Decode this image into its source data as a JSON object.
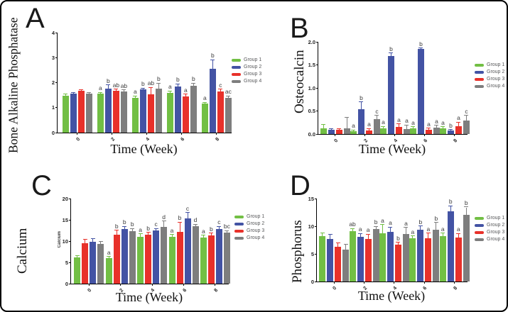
{
  "colors": {
    "group1": "#72bf44",
    "group2": "#4353a4",
    "group3": "#e8312a",
    "group4": "#7e7e7e"
  },
  "legend": {
    "items": [
      {
        "label": "Group 1",
        "color": "#72bf44"
      },
      {
        "label": "Group 2",
        "color": "#4353a4"
      },
      {
        "label": "Group 3",
        "color": "#e8312a"
      },
      {
        "label": "Group 4",
        "color": "#7e7e7e"
      }
    ]
  },
  "chart_data": [
    {
      "type": "bar",
      "panel_letter": "A",
      "ylabel": "Bone Alkaline Phosphatase",
      "inner_ylabel": "",
      "xlabel": "Time (Week)",
      "categories": [
        "0",
        "2",
        "4",
        "6",
        "8"
      ],
      "ylim": [
        0,
        4
      ],
      "yticks": [
        "0",
        "1",
        "2",
        "3",
        "4"
      ],
      "bar_order": [
        0,
        1,
        2,
        3
      ],
      "grid": false,
      "legend_position": "right",
      "series": [
        {
          "name": "Group 1",
          "color": "#72bf44",
          "values": [
            1.47,
            1.55,
            1.4,
            1.6,
            1.15
          ],
          "errors": [
            0.05,
            0.05,
            0.05,
            0.06,
            0.05
          ],
          "letters": [
            "",
            "a",
            "a",
            "a",
            "a"
          ]
        },
        {
          "name": "Group 2",
          "color": "#4353a4",
          "values": [
            1.56,
            1.75,
            1.72,
            1.85,
            2.55
          ],
          "errors": [
            0.03,
            0.15,
            0.04,
            0.08,
            0.35
          ],
          "letters": [
            "",
            "b",
            "b",
            "b",
            "b"
          ]
        },
        {
          "name": "Group 3",
          "color": "#e8312a",
          "values": [
            1.67,
            1.68,
            1.52,
            1.45,
            1.65
          ],
          "errors": [
            0.04,
            0.04,
            0.28,
            0.08,
            0.08
          ],
          "letters": [
            "",
            "ab",
            "ab",
            "a",
            "c"
          ]
        },
        {
          "name": "Group 4",
          "color": "#7e7e7e",
          "values": [
            1.55,
            1.65,
            1.75,
            1.88,
            1.38
          ],
          "errors": [
            0.04,
            0.04,
            0.22,
            0.08,
            0.08
          ],
          "letters": [
            "",
            "ab",
            "b",
            "b",
            "ac"
          ]
        }
      ]
    },
    {
      "type": "bar",
      "panel_letter": "B",
      "ylabel": "Osteocalcin",
      "inner_ylabel": "",
      "xlabel": "Time (Week)",
      "categories": [
        "0",
        "2",
        "4",
        "6",
        "8"
      ],
      "ylim": [
        0,
        2
      ],
      "yticks": [
        "0.0",
        "0.5",
        "1.0",
        "1.5",
        "2.0"
      ],
      "bar_order": [
        0,
        1,
        2,
        3
      ],
      "grid": false,
      "legend_position": "right",
      "series": [
        {
          "name": "Group 1",
          "color": "#72bf44",
          "values": [
            0.12,
            0.06,
            0.13,
            0.12,
            0.12
          ],
          "errors": [
            0.08,
            0.02,
            0.03,
            0.03,
            0.03
          ],
          "letters": [
            "",
            "a",
            "a",
            "a",
            "a"
          ]
        },
        {
          "name": "Group 2",
          "color": "#4353a4",
          "values": [
            0.09,
            0.54,
            1.7,
            1.84,
            0.07
          ],
          "errors": [
            0.02,
            0.15,
            0.05,
            0.02,
            0.02
          ],
          "letters": [
            "",
            "b",
            "b",
            "b",
            "b"
          ]
        },
        {
          "name": "Group 3",
          "color": "#e8312a",
          "values": [
            0.09,
            0.08,
            0.16,
            0.09,
            0.17
          ],
          "errors": [
            0.02,
            0.03,
            0.05,
            0.03,
            0.08
          ],
          "letters": [
            "",
            "a",
            "a",
            "a",
            "a"
          ]
        },
        {
          "name": "Group 4",
          "color": "#7e7e7e",
          "values": [
            0.13,
            0.33,
            0.11,
            0.14,
            0.3
          ],
          "errors": [
            0.22,
            0.07,
            0.08,
            0.04,
            0.1
          ],
          "letters": [
            "",
            "c",
            "a",
            "a",
            "c"
          ]
        }
      ]
    },
    {
      "type": "bar",
      "panel_letter": "C",
      "ylabel": "Calcium",
      "inner_ylabel": "Calcium",
      "xlabel": "Time (Week)",
      "categories": [
        "0",
        "2",
        "4",
        "6",
        "8"
      ],
      "ylim": [
        0,
        20
      ],
      "yticks": [
        "0",
        "5",
        "10",
        "15",
        "20"
      ],
      "bar_order": [
        0,
        2,
        1,
        3
      ],
      "grid": false,
      "legend_position": "right",
      "series": [
        {
          "name": "Group 1",
          "color": "#72bf44",
          "values": [
            6.2,
            6.0,
            11.0,
            11.0,
            10.8
          ],
          "errors": [
            0.3,
            0.3,
            0.6,
            0.5,
            0.5
          ],
          "letters": [
            "",
            "a",
            "a",
            "a",
            "a"
          ]
        },
        {
          "name": "Group 2",
          "color": "#4353a4",
          "values": [
            9.8,
            12.8,
            12.5,
            15.4,
            12.8
          ],
          "errors": [
            0.7,
            0.6,
            0.4,
            1.2,
            0.6
          ],
          "letters": [
            "",
            "b",
            "c",
            "c",
            "c"
          ]
        },
        {
          "name": "Group 3",
          "color": "#e8312a",
          "values": [
            9.5,
            11.5,
            11.5,
            12.2,
            11.4
          ],
          "errors": [
            0.8,
            1.0,
            0.5,
            2.2,
            0.4
          ],
          "letters": [
            "",
            "b",
            "b",
            "b",
            "b"
          ]
        },
        {
          "name": "Group 4",
          "color": "#7e7e7e",
          "values": [
            9.4,
            12.4,
            13.4,
            13.5,
            12.0
          ],
          "errors": [
            0.5,
            0.5,
            1.2,
            0.4,
            0.4
          ],
          "letters": [
            "",
            "b",
            "d",
            "d",
            "bc"
          ]
        }
      ]
    },
    {
      "type": "bar",
      "panel_letter": "D",
      "ylabel": "Phosphorus",
      "inner_ylabel": "",
      "xlabel": "Time (Week)",
      "categories": [
        "0",
        "2",
        "4",
        "6",
        "8"
      ],
      "ylim": [
        0,
        15
      ],
      "yticks": [
        "0",
        "5",
        "10",
        "15"
      ],
      "bar_order": [
        0,
        1,
        2,
        3
      ],
      "grid": false,
      "legend_position": "right",
      "series": [
        {
          "name": "Group 1",
          "color": "#72bf44",
          "values": [
            8.2,
            9.1,
            8.7,
            7.8,
            8.2
          ],
          "errors": [
            0.5,
            0.4,
            1.5,
            0.4,
            0.5
          ],
          "letters": [
            "",
            "ab",
            "a",
            "a",
            "a"
          ]
        },
        {
          "name": "Group 2",
          "color": "#4353a4",
          "values": [
            7.7,
            8.1,
            9.0,
            9.4,
            12.7
          ],
          "errors": [
            0.8,
            0.5,
            0.8,
            0.6,
            0.9
          ],
          "letters": [
            "",
            "a",
            "a",
            "b",
            "b"
          ]
        },
        {
          "name": "Group 3",
          "color": "#e8312a",
          "values": [
            6.3,
            7.7,
            6.7,
            7.8,
            8.0
          ],
          "errors": [
            0.6,
            0.8,
            0.3,
            0.9,
            0.6
          ],
          "letters": [
            "",
            "a",
            "b",
            "a",
            "a"
          ]
        },
        {
          "name": "Group 4",
          "color": "#7e7e7e",
          "values": [
            5.8,
            9.5,
            8.6,
            9.3,
            12.0
          ],
          "errors": [
            0.9,
            0.4,
            1.1,
            1.3,
            1.4
          ],
          "letters": [
            "",
            "b",
            "a",
            "b",
            "b"
          ]
        }
      ]
    }
  ]
}
